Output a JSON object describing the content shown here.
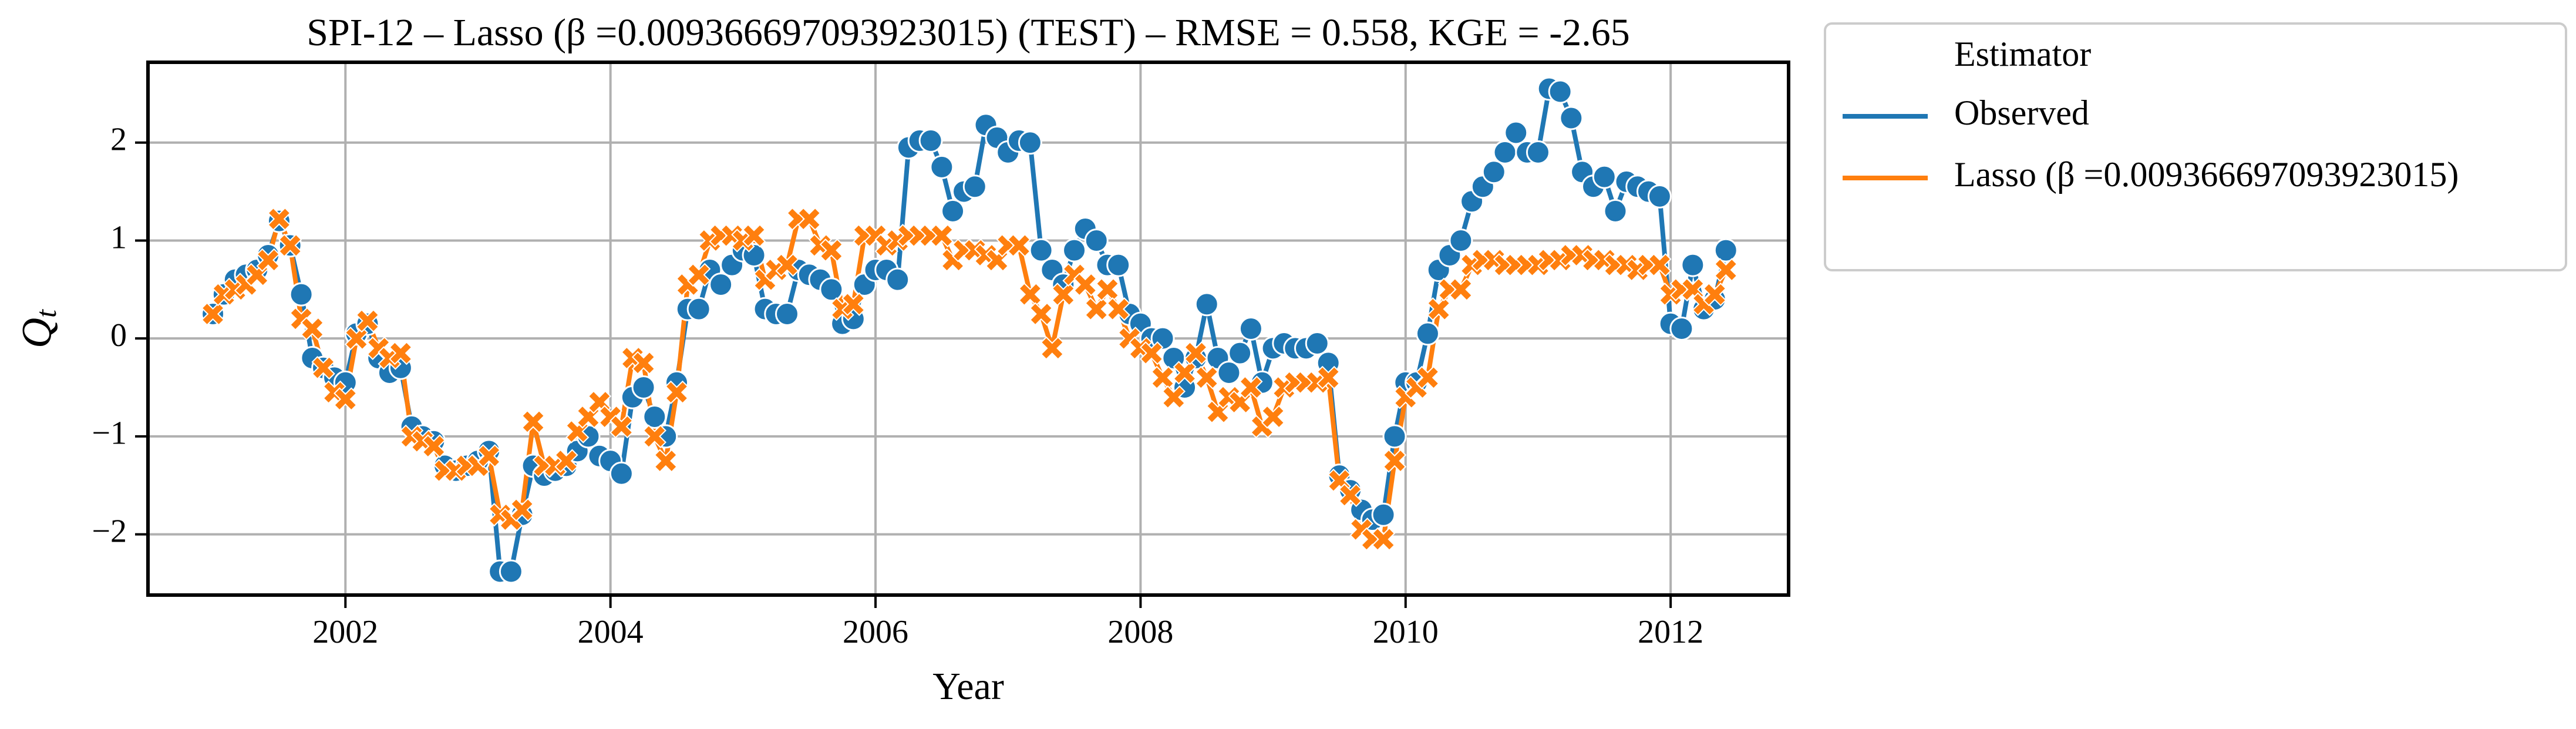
{
  "chart_data": {
    "type": "line",
    "title": "SPI-12 – Lasso (β =0.009366697093923015) (TEST) – RMSE = 0.558, KGE = -2.65",
    "xlabel": "Year",
    "ylabel": "Qt",
    "legend_title": "Estimator",
    "legend": "outside-upper-right",
    "grid": true,
    "xlim": [
      2000.51,
      2012.89
    ],
    "ylim": [
      -2.62,
      2.82
    ],
    "xticks": [
      2002,
      2004,
      2006,
      2008,
      2010,
      2012
    ],
    "yticks": [
      {
        "value": -2,
        "label": "−2"
      },
      {
        "value": -1,
        "label": "−1"
      },
      0,
      1,
      2
    ],
    "x": [
      2001,
      2001.083,
      2001.167,
      2001.25,
      2001.333,
      2001.417,
      2001.5,
      2001.583,
      2001.667,
      2001.75,
      2001.833,
      2001.917,
      2002,
      2002.083,
      2002.167,
      2002.25,
      2002.333,
      2002.417,
      2002.5,
      2002.583,
      2002.667,
      2002.75,
      2002.833,
      2002.917,
      2003,
      2003.083,
      2003.167,
      2003.25,
      2003.333,
      2003.417,
      2003.5,
      2003.583,
      2003.667,
      2003.75,
      2003.833,
      2003.917,
      2004,
      2004.083,
      2004.167,
      2004.25,
      2004.333,
      2004.417,
      2004.5,
      2004.583,
      2004.667,
      2004.75,
      2004.833,
      2004.917,
      2005,
      2005.083,
      2005.167,
      2005.25,
      2005.333,
      2005.417,
      2005.5,
      2005.583,
      2005.667,
      2005.75,
      2005.833,
      2005.917,
      2006,
      2006.083,
      2006.167,
      2006.25,
      2006.333,
      2006.417,
      2006.5,
      2006.583,
      2006.667,
      2006.75,
      2006.833,
      2006.917,
      2007,
      2007.083,
      2007.167,
      2007.25,
      2007.333,
      2007.417,
      2007.5,
      2007.583,
      2007.667,
      2007.75,
      2007.833,
      2007.917,
      2008,
      2008.083,
      2008.167,
      2008.25,
      2008.333,
      2008.417,
      2008.5,
      2008.583,
      2008.667,
      2008.75,
      2008.833,
      2008.917,
      2009,
      2009.083,
      2009.167,
      2009.25,
      2009.333,
      2009.417,
      2009.5,
      2009.583,
      2009.667,
      2009.75,
      2009.833,
      2009.917,
      2010,
      2010.083,
      2010.167,
      2010.25,
      2010.333,
      2010.417,
      2010.5,
      2010.583,
      2010.667,
      2010.75,
      2010.833,
      2010.917,
      2011,
      2011.083,
      2011.167,
      2011.25,
      2011.333,
      2011.417,
      2011.5,
      2011.583,
      2011.667,
      2011.75,
      2011.833,
      2011.917,
      2012,
      2012.083,
      2012.167,
      2012.25,
      2012.333,
      2012.417
    ],
    "series": [
      {
        "name": "Observed",
        "color": "#1f77b4",
        "marker": "circle",
        "values": [
          0.25,
          0.45,
          0.6,
          0.65,
          0.7,
          0.85,
          1.2,
          0.95,
          0.45,
          -0.2,
          -0.3,
          -0.4,
          -0.45,
          0.05,
          0.15,
          -0.2,
          -0.35,
          -0.3,
          -0.9,
          -1.0,
          -1.05,
          -1.3,
          -1.35,
          -1.3,
          -1.25,
          -1.15,
          -2.38,
          -2.38,
          -1.8,
          -1.3,
          -1.4,
          -1.35,
          -1.3,
          -1.15,
          -1.0,
          -1.2,
          -1.25,
          -1.38,
          -0.6,
          -0.5,
          -0.8,
          -1.0,
          -0.45,
          0.3,
          0.3,
          0.7,
          0.55,
          0.75,
          0.9,
          0.85,
          0.3,
          0.25,
          0.25,
          0.7,
          0.65,
          0.6,
          0.5,
          0.15,
          0.2,
          0.55,
          0.7,
          0.7,
          0.6,
          1.95,
          2.02,
          2.02,
          1.75,
          1.3,
          1.5,
          1.55,
          2.18,
          2.05,
          1.9,
          2.02,
          2.0,
          0.9,
          0.7,
          0.55,
          0.9,
          1.12,
          1.0,
          0.75,
          0.75,
          0.25,
          0.15,
          0.0,
          0.0,
          -0.2,
          -0.5,
          -0.2,
          0.35,
          -0.2,
          -0.35,
          -0.15,
          0.1,
          -0.45,
          -0.1,
          -0.05,
          -0.1,
          -0.1,
          -0.05,
          -0.25,
          -1.4,
          -1.55,
          -1.75,
          -1.85,
          -1.8,
          -1.0,
          -0.45,
          -0.45,
          0.05,
          0.7,
          0.85,
          1.0,
          1.4,
          1.55,
          1.7,
          1.9,
          2.1,
          1.9,
          1.9,
          2.55,
          2.52,
          2.25,
          1.7,
          1.55,
          1.65,
          1.3,
          1.6,
          1.55,
          1.5,
          1.45,
          0.15,
          0.1,
          0.75,
          0.3,
          0.4,
          0.9
        ]
      },
      {
        "name": "Lasso (β =0.009366697093923015)",
        "color": "#ff7f0e",
        "marker": "x",
        "values": [
          0.25,
          0.45,
          0.5,
          0.55,
          0.65,
          0.8,
          1.22,
          0.95,
          0.2,
          0.1,
          -0.3,
          -0.55,
          -0.62,
          0.0,
          0.18,
          -0.1,
          -0.2,
          -0.15,
          -1.0,
          -1.05,
          -1.1,
          -1.35,
          -1.35,
          -1.3,
          -1.3,
          -1.2,
          -1.8,
          -1.85,
          -1.75,
          -0.85,
          -1.3,
          -1.3,
          -1.25,
          -0.95,
          -0.8,
          -0.65,
          -0.8,
          -0.9,
          -0.2,
          -0.25,
          -1.0,
          -1.25,
          -0.55,
          0.55,
          0.65,
          1.0,
          1.05,
          1.05,
          1.0,
          1.05,
          0.6,
          0.7,
          0.75,
          1.22,
          1.22,
          0.95,
          0.9,
          0.3,
          0.35,
          1.05,
          1.05,
          0.95,
          1.0,
          1.05,
          1.05,
          1.05,
          1.05,
          0.8,
          0.9,
          0.9,
          0.85,
          0.8,
          0.95,
          0.95,
          0.45,
          0.25,
          -0.1,
          0.45,
          0.65,
          0.55,
          0.3,
          0.5,
          0.3,
          0.0,
          -0.1,
          -0.15,
          -0.4,
          -0.6,
          -0.35,
          -0.15,
          -0.4,
          -0.75,
          -0.6,
          -0.65,
          -0.5,
          -0.9,
          -0.8,
          -0.5,
          -0.45,
          -0.45,
          -0.45,
          -0.4,
          -1.45,
          -1.6,
          -1.95,
          -2.05,
          -2.05,
          -1.25,
          -0.6,
          -0.5,
          -0.4,
          0.3,
          0.5,
          0.5,
          0.75,
          0.8,
          0.8,
          0.75,
          0.75,
          0.75,
          0.75,
          0.8,
          0.8,
          0.85,
          0.85,
          0.8,
          0.8,
          0.75,
          0.75,
          0.7,
          0.75,
          0.75,
          0.45,
          0.5,
          0.5,
          0.35,
          0.45,
          0.7
        ]
      }
    ]
  }
}
